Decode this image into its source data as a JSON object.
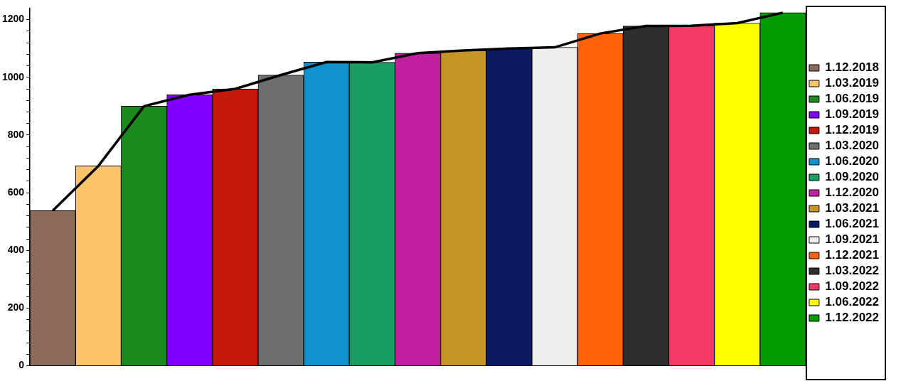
{
  "chart_data": {
    "type": "bar",
    "categories": [
      null,
      null,
      null,
      null,
      null,
      null,
      null,
      null,
      null,
      null,
      null,
      null,
      null,
      null,
      null,
      null,
      null
    ],
    "series": [
      {
        "name": "1.12.2018",
        "color": "#8c6a5a",
        "values": [
          538,
          null,
          null,
          null,
          null,
          null,
          null,
          null,
          null,
          null,
          null,
          null,
          null,
          null,
          null,
          null,
          null
        ]
      },
      {
        "name": "1.03.2019",
        "color": "#fdc46c",
        "values": [
          null,
          693,
          null,
          null,
          null,
          null,
          null,
          null,
          null,
          null,
          null,
          null,
          null,
          null,
          null,
          null,
          null
        ]
      },
      {
        "name": "1.06.2019",
        "color": "#1b8a1f",
        "values": [
          null,
          null,
          900,
          null,
          null,
          null,
          null,
          null,
          null,
          null,
          null,
          null,
          null,
          null,
          null,
          null,
          null
        ]
      },
      {
        "name": "1.09.2019",
        "color": "#8000ff",
        "values": [
          null,
          null,
          null,
          940,
          null,
          null,
          null,
          null,
          null,
          null,
          null,
          null,
          null,
          null,
          null,
          null,
          null
        ]
      },
      {
        "name": "1.12.2019",
        "color": "#c5190b",
        "values": [
          null,
          null,
          null,
          null,
          960,
          null,
          null,
          null,
          null,
          null,
          null,
          null,
          null,
          null,
          null,
          null,
          null
        ]
      },
      {
        "name": "1.03.2020",
        "color": "#6e6e6e",
        "values": [
          null,
          null,
          null,
          null,
          null,
          1008,
          null,
          null,
          null,
          null,
          null,
          null,
          null,
          null,
          null,
          null,
          null
        ]
      },
      {
        "name": "1.06.2020",
        "color": "#1192cc",
        "values": [
          null,
          null,
          null,
          null,
          null,
          null,
          1053,
          null,
          null,
          null,
          null,
          null,
          null,
          null,
          null,
          null,
          null
        ]
      },
      {
        "name": "1.09.2020",
        "color": "#189e60",
        "values": [
          null,
          null,
          null,
          null,
          null,
          null,
          null,
          1052,
          null,
          null,
          null,
          null,
          null,
          null,
          null,
          null,
          null
        ]
      },
      {
        "name": "1.12.2020",
        "color": "#c020a0",
        "values": [
          null,
          null,
          null,
          null,
          null,
          null,
          null,
          null,
          1084,
          null,
          null,
          null,
          null,
          null,
          null,
          null,
          null
        ]
      },
      {
        "name": "1.03.2021",
        "color": "#c59528",
        "values": [
          null,
          null,
          null,
          null,
          null,
          null,
          null,
          null,
          null,
          1093,
          null,
          null,
          null,
          null,
          null,
          null,
          null
        ]
      },
      {
        "name": "1.06.2021",
        "color": "#0b1a63",
        "values": [
          null,
          null,
          null,
          null,
          null,
          null,
          null,
          null,
          null,
          null,
          1100,
          null,
          null,
          null,
          null,
          null,
          null
        ]
      },
      {
        "name": "1.09.2021",
        "color": "#eeeeee",
        "values": [
          null,
          null,
          null,
          null,
          null,
          null,
          null,
          null,
          null,
          null,
          null,
          1104,
          null,
          null,
          null,
          null,
          null
        ]
      },
      {
        "name": "1.12.2021",
        "color": "#ff6209",
        "values": [
          null,
          null,
          null,
          null,
          null,
          null,
          null,
          null,
          null,
          null,
          null,
          null,
          1152,
          null,
          null,
          null,
          null
        ]
      },
      {
        "name": "1.03.2022",
        "color": "#2e2e2e",
        "values": [
          null,
          null,
          null,
          null,
          null,
          null,
          null,
          null,
          null,
          null,
          null,
          null,
          null,
          1178,
          null,
          null,
          null
        ]
      },
      {
        "name": "1.09.2022",
        "color": "#f53864",
        "values": [
          null,
          null,
          null,
          null,
          null,
          null,
          null,
          null,
          null,
          null,
          null,
          null,
          null,
          null,
          1179,
          null,
          null
        ]
      },
      {
        "name": "1.06.2022",
        "color": "#ffff00",
        "values": [
          null,
          null,
          null,
          null,
          null,
          null,
          null,
          null,
          null,
          null,
          null,
          null,
          null,
          null,
          null,
          1188,
          null
        ]
      },
      {
        "name": "1.12.2022",
        "color": "#009c00",
        "values": [
          null,
          null,
          null,
          null,
          null,
          null,
          null,
          null,
          null,
          null,
          null,
          null,
          null,
          null,
          null,
          null,
          1224
        ]
      },
      {
        "type": "line",
        "color": "#000000",
        "values": [
          538,
          693,
          900,
          940,
          960,
          1008,
          1053,
          1052,
          1084,
          1093,
          1100,
          1104,
          1152,
          1178,
          1179,
          1188,
          1224
        ]
      }
    ],
    "ylim": [
      0,
      1240
    ],
    "yticks": [
      0,
      {
        "value": 40,
        "label": null
      },
      {
        "value": 80,
        "label": null
      },
      {
        "value": 120,
        "label": null
      },
      {
        "value": 160,
        "label": null
      },
      200,
      {
        "value": 240,
        "label": null
      },
      {
        "value": 280,
        "label": null
      },
      {
        "value": 320,
        "label": null
      },
      {
        "value": 360,
        "label": null
      },
      400,
      {
        "value": 440,
        "label": null
      },
      {
        "value": 480,
        "label": null
      },
      {
        "value": 520,
        "label": null
      },
      {
        "value": 560,
        "label": null
      },
      600,
      {
        "value": 640,
        "label": null
      },
      {
        "value": 680,
        "label": null
      },
      {
        "value": 720,
        "label": null
      },
      {
        "value": 760,
        "label": null
      },
      800,
      {
        "value": 840,
        "label": null
      },
      {
        "value": 880,
        "label": null
      },
      {
        "value": 920,
        "label": null
      },
      {
        "value": 960,
        "label": null
      },
      1000,
      {
        "value": 1040,
        "label": null
      },
      {
        "value": 1080,
        "label": null
      },
      {
        "value": 1120,
        "label": null
      },
      {
        "value": 1160,
        "label": null
      },
      1200
    ],
    "grid": false,
    "legend": "right",
    "marker": "none",
    "line_style": "solid"
  }
}
